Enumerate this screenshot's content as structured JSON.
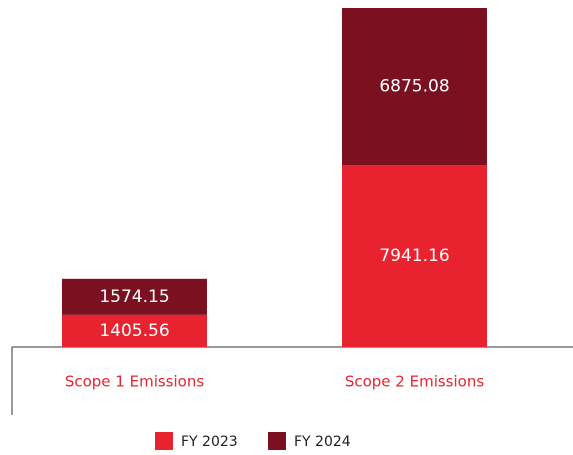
{
  "chart_data": {
    "type": "bar",
    "stacked": true,
    "categories": [
      "Scope 1 Emissions",
      "Scope 2 Emissions"
    ],
    "series": [
      {
        "name": "FY 2023",
        "color": "#e8232f",
        "values": [
          1405.56,
          7941.16
        ]
      },
      {
        "name": "FY 2024",
        "color": "#7a1020",
        "values": [
          1574.15,
          6875.08
        ]
      }
    ]
  }
}
